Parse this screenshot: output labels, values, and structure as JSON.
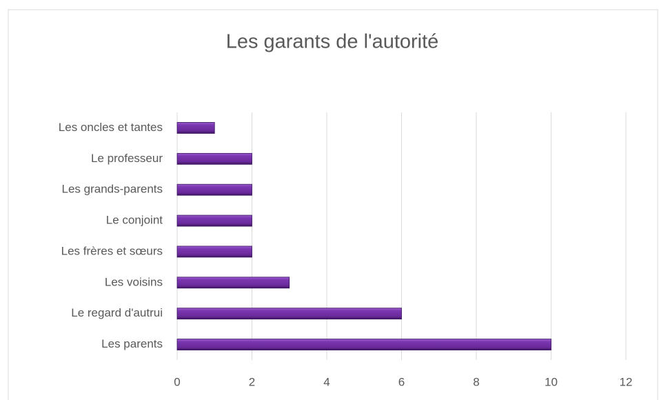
{
  "chart_data": {
    "type": "barh",
    "title": "Les garants de l'autorité",
    "categories": [
      "Les oncles et tantes",
      "Le professeur",
      "Les grands-parents",
      "Le conjoint",
      "Les frères et sœurs",
      "Les voisins",
      "Le regard d'autrui",
      "Les parents"
    ],
    "values": [
      1,
      2,
      2,
      2,
      2,
      3,
      6,
      10
    ],
    "color": "#7030a0",
    "xlim": [
      0,
      12
    ],
    "xticks": [
      0,
      2,
      4,
      6,
      8,
      10,
      12
    ],
    "grid": true
  }
}
